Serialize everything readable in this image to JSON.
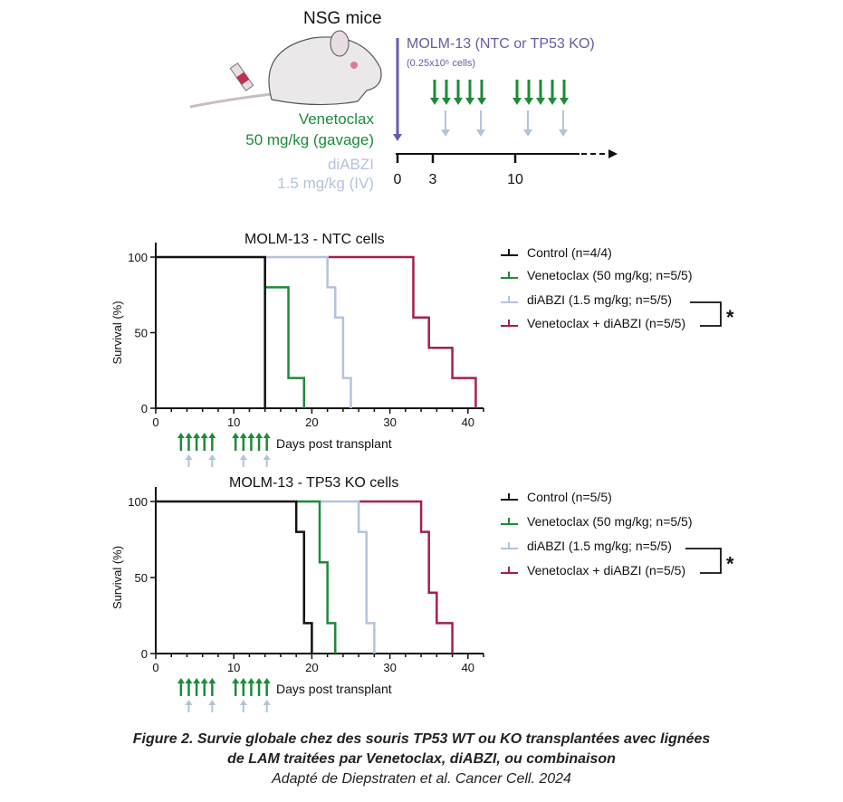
{
  "schema": {
    "title": "NSG mice",
    "injection": "MOLM-13 (NTC or TP53 KO)",
    "injection_cells": "(0.25x10⁶ cells)",
    "drug1_name": "Venetoclax",
    "drug1_dose": "50 mg/kg (gavage)",
    "drug2_name": "diABZI",
    "drug2_dose": "1.5 mg/kg (IV)",
    "timeline_ticks": [
      "0",
      "3",
      "10"
    ],
    "venetoclax_days": [
      3,
      4,
      5,
      6,
      7,
      10,
      11,
      12,
      13,
      14
    ],
    "diabzi_days": [
      4,
      7,
      11,
      14
    ]
  },
  "colors": {
    "control": "#111111",
    "venetoclax": "#1e8a3a",
    "diabzi": "#b4c3db",
    "combo": "#a3204f",
    "purple": "#6a5aa8"
  },
  "chart_data": [
    {
      "type": "line",
      "step": true,
      "title": "MOLM-13 - NTC cells",
      "xlabel": "Days post transplant",
      "ylabel": "Survival (%)",
      "xlim": [
        0,
        42
      ],
      "ylim": [
        0,
        100
      ],
      "xticks": [
        "0",
        "10",
        "20",
        "30",
        "40"
      ],
      "yticks": [
        "0",
        "50",
        "100"
      ],
      "series": [
        {
          "name": "Control (n=4/4)",
          "key": "control",
          "points": [
            [
              0,
              100
            ],
            [
              14,
              100
            ],
            [
              14,
              0
            ]
          ]
        },
        {
          "name": "Venetoclax (50 mg/kg; n=5/5)",
          "key": "venetoclax",
          "points": [
            [
              14,
              100
            ],
            [
              14,
              80
            ],
            [
              17,
              80
            ],
            [
              17,
              20
            ],
            [
              19,
              20
            ],
            [
              19,
              0
            ]
          ]
        },
        {
          "name": "diABZI (1.5 mg/kg; n=5/5)",
          "key": "diabzi",
          "points": [
            [
              14,
              100
            ],
            [
              22,
              100
            ],
            [
              22,
              80
            ],
            [
              23,
              80
            ],
            [
              23,
              60
            ],
            [
              24,
              60
            ],
            [
              24,
              20
            ],
            [
              25,
              20
            ],
            [
              25,
              0
            ]
          ]
        },
        {
          "name": "Venetoclax + diABZI (n=5/5)",
          "key": "combo",
          "points": [
            [
              22,
              100
            ],
            [
              33,
              100
            ],
            [
              33,
              60
            ],
            [
              35,
              60
            ],
            [
              35,
              40
            ],
            [
              38,
              40
            ],
            [
              38,
              20
            ],
            [
              41,
              20
            ],
            [
              41,
              0
            ]
          ]
        }
      ],
      "significance": "*"
    },
    {
      "type": "line",
      "step": true,
      "title": "MOLM-13 - TP53 KO cells",
      "xlabel": "Days post transplant",
      "ylabel": "Survival (%)",
      "xlim": [
        0,
        42
      ],
      "ylim": [
        0,
        100
      ],
      "xticks": [
        "0",
        "10",
        "20",
        "30",
        "40"
      ],
      "yticks": [
        "0",
        "50",
        "100"
      ],
      "series": [
        {
          "name": "Control (n=5/5)",
          "key": "control",
          "points": [
            [
              0,
              100
            ],
            [
              18,
              100
            ],
            [
              18,
              80
            ],
            [
              19,
              80
            ],
            [
              19,
              20
            ],
            [
              20,
              20
            ],
            [
              20,
              0
            ]
          ]
        },
        {
          "name": "Venetoclax (50 mg/kg; n=5/5)",
          "key": "venetoclax",
          "points": [
            [
              18,
              100
            ],
            [
              21,
              100
            ],
            [
              21,
              60
            ],
            [
              22,
              60
            ],
            [
              22,
              20
            ],
            [
              23,
              20
            ],
            [
              23,
              0
            ]
          ]
        },
        {
          "name": "diABZI (1.5 mg/kg; n=5/5)",
          "key": "diabzi",
          "points": [
            [
              21,
              100
            ],
            [
              26,
              100
            ],
            [
              26,
              80
            ],
            [
              27,
              80
            ],
            [
              27,
              20
            ],
            [
              28,
              20
            ],
            [
              28,
              0
            ]
          ]
        },
        {
          "name": "Venetoclax + diABZI (n=5/5)",
          "key": "combo",
          "points": [
            [
              26,
              100
            ],
            [
              34,
              100
            ],
            [
              34,
              80
            ],
            [
              35,
              80
            ],
            [
              35,
              40
            ],
            [
              36,
              40
            ],
            [
              36,
              20
            ],
            [
              38,
              20
            ],
            [
              38,
              0
            ]
          ]
        }
      ],
      "significance": "*"
    }
  ],
  "caption": {
    "line1": "Figure 2. Survie globale chez des souris TP53 WT ou KO transplantées avec lignées",
    "line2": "de LAM traitées par Venetoclax, diABZI, ou combinaison",
    "source": "Adapté de Diepstraten et al. Cancer Cell. 2024"
  }
}
